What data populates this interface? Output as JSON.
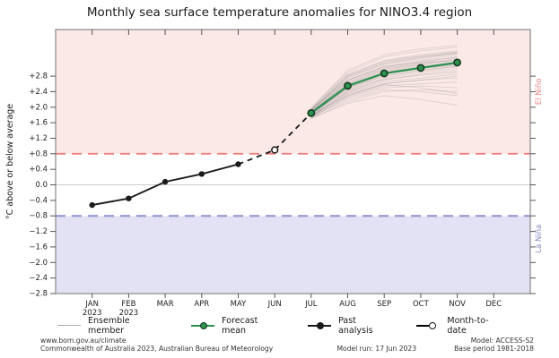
{
  "title": "Monthly sea surface temperature anomalies for NINO3.4 region",
  "colors": {
    "pink_region": "#fbe9e6",
    "lavender_region": "#e2e2f4",
    "red_dash": "#f08080",
    "blue_dash": "#9a9ad2",
    "green": "#2d9150",
    "green_edge": "#16381f",
    "black": "#1a1a1a",
    "ensemble": "rgba(128,128,128,0.25)",
    "ensemble_legend": "#aaaaaa",
    "gridline": "#cccccc",
    "border": "#888888",
    "elnino_label_color": "#e8827e",
    "lanina_label_color": "#8585c5"
  },
  "chart_data": {
    "type": "line",
    "title": "Monthly sea surface temperature anomalies for NINO3.4 region",
    "ylabel": "°C above or below average",
    "ylim": [
      -2.8,
      4.0
    ],
    "yticks": [
      -2.8,
      -2.4,
      -2.0,
      -1.6,
      -1.2,
      -0.8,
      -0.4,
      0.0,
      0.4,
      0.8,
      1.2,
      1.6,
      2.0,
      2.4,
      2.8
    ],
    "grid_zero_line": true,
    "categories": [
      {
        "label": "JAN",
        "sublabel": "2023"
      },
      {
        "label": "FEB",
        "sublabel": "2023"
      },
      {
        "label": "MAR"
      },
      {
        "label": "APR"
      },
      {
        "label": "MAY"
      },
      {
        "label": "JUN"
      },
      {
        "label": "JUL"
      },
      {
        "label": "AUG"
      },
      {
        "label": "SEP"
      },
      {
        "label": "OCT"
      },
      {
        "label": "NOV"
      },
      {
        "label": "DEC"
      }
    ],
    "bands": {
      "elnino": {
        "label": "El Niño",
        "threshold": 0.8
      },
      "lanina": {
        "label": "La Niña",
        "threshold": -0.8
      }
    },
    "series": [
      {
        "name": "Past analysis",
        "type": "line-dots",
        "start_index": 0,
        "values": [
          -0.52,
          -0.35,
          0.08,
          0.28,
          0.53
        ]
      },
      {
        "name": "Month-to-date",
        "type": "open-dot",
        "start_index": 5,
        "values": [
          0.9
        ]
      },
      {
        "name": "Forecast mean",
        "type": "line-dots",
        "start_index": 6,
        "values": [
          1.85,
          2.55,
          2.87,
          3.01,
          3.15
        ]
      },
      {
        "name": "Ensemble member",
        "type": "multi-line",
        "start_index": 6,
        "members": [
          [
            1.8,
            2.3,
            2.6,
            2.7,
            2.75
          ],
          [
            1.85,
            2.5,
            2.8,
            2.95,
            3.05
          ],
          [
            1.9,
            2.7,
            3.05,
            3.15,
            3.2
          ],
          [
            1.75,
            2.2,
            2.45,
            2.4,
            2.3
          ],
          [
            1.95,
            2.85,
            3.2,
            3.35,
            3.45
          ],
          [
            1.82,
            2.55,
            2.9,
            3.05,
            3.15
          ],
          [
            1.78,
            2.4,
            2.7,
            2.85,
            2.95
          ],
          [
            1.88,
            2.6,
            2.95,
            3.1,
            3.25
          ],
          [
            1.72,
            2.1,
            2.3,
            2.2,
            2.05
          ],
          [
            1.92,
            2.75,
            3.1,
            3.25,
            3.4
          ],
          [
            1.84,
            2.45,
            2.75,
            2.9,
            3.0
          ],
          [
            1.96,
            2.9,
            3.3,
            3.45,
            3.55
          ],
          [
            1.76,
            2.35,
            2.6,
            2.7,
            2.8
          ],
          [
            1.86,
            2.65,
            3.0,
            3.15,
            3.3
          ],
          [
            1.8,
            2.5,
            2.85,
            3.0,
            3.1
          ],
          [
            1.9,
            2.8,
            3.15,
            3.3,
            3.4
          ],
          [
            1.74,
            2.25,
            2.5,
            2.55,
            2.5
          ],
          [
            1.94,
            2.7,
            3.05,
            3.2,
            3.35
          ],
          [
            1.82,
            2.55,
            2.88,
            3.02,
            3.12
          ],
          [
            1.7,
            2.15,
            2.4,
            2.45,
            2.4
          ],
          [
            1.88,
            2.62,
            2.98,
            3.12,
            3.22
          ],
          [
            1.98,
            2.95,
            3.35,
            3.5,
            3.6
          ],
          [
            1.79,
            2.42,
            2.72,
            2.82,
            2.9
          ],
          [
            1.85,
            2.58,
            2.92,
            3.08,
            3.18
          ],
          [
            1.73,
            2.28,
            2.55,
            2.6,
            2.65
          ],
          [
            1.91,
            2.78,
            3.12,
            3.28,
            3.38
          ],
          [
            1.83,
            2.48,
            2.8,
            2.95,
            3.05
          ],
          [
            1.87,
            2.68,
            3.02,
            3.18,
            3.28
          ],
          [
            1.77,
            2.32,
            2.58,
            2.5,
            2.35
          ],
          [
            1.93,
            2.82,
            3.18,
            3.32,
            3.42
          ],
          [
            1.81,
            2.52,
            2.86,
            3.0,
            3.08
          ],
          [
            1.75,
            2.38,
            2.65,
            2.75,
            2.85
          ]
        ]
      }
    ]
  },
  "legend": {
    "items": [
      "Ensemble member",
      "Forecast mean",
      "Past analysis",
      "Month-to-date"
    ]
  },
  "footer": {
    "url": "www.bom.gov.au/climate",
    "copyright": "Commonwealth of Australia 2023, Australian Bureau of Meteorology",
    "model": "Model: ACCESS-S2",
    "model_run": "Model run: 17 Jun 2023",
    "base_period": "Base period 1981-2018"
  }
}
